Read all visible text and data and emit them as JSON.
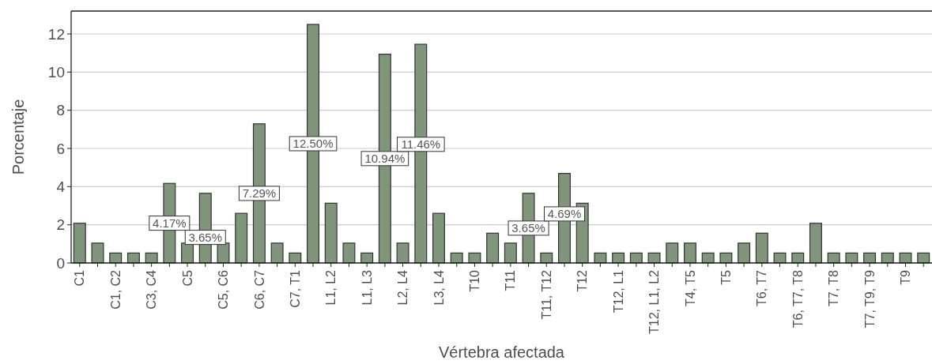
{
  "chart_data": {
    "type": "bar",
    "xlabel": "Vértebra afectada",
    "ylabel": "Porcentaje",
    "categories": [
      "C1",
      null,
      "C1, C2",
      null,
      "C3, C4",
      null,
      "C5",
      null,
      "C5, C6",
      null,
      "C6, C7",
      null,
      "C7, T1",
      null,
      "L1, L2",
      null,
      "L1, L3",
      null,
      "L2, L4",
      null,
      "L3, L4",
      null,
      "T10",
      null,
      "T11",
      null,
      "T11, T12",
      null,
      "T12",
      null,
      "T12, L1",
      null,
      "T12, L1, L2",
      null,
      "T4, T5",
      null,
      "T5",
      null,
      "T6, T7",
      null,
      "T6, T7, T8",
      null,
      "T7, T8",
      null,
      "T7, T9, T9",
      null,
      "T9",
      null
    ],
    "values": [
      2.08,
      1.04,
      0.52,
      0.52,
      0.52,
      4.17,
      1.04,
      3.65,
      1.04,
      2.6,
      7.29,
      1.04,
      0.52,
      12.5,
      3.13,
      1.04,
      0.52,
      10.94,
      1.04,
      11.46,
      2.6,
      0.52,
      0.52,
      1.56,
      1.04,
      3.65,
      0.52,
      4.69,
      3.13,
      0.52,
      0.52,
      0.52,
      0.52,
      1.04,
      1.04,
      0.52,
      0.52,
      1.04,
      1.56,
      0.52,
      0.52,
      2.08,
      0.52,
      0.52,
      0.52,
      0.52,
      0.52,
      0.52
    ],
    "value_labels": [
      null,
      null,
      null,
      null,
      null,
      "4.17%",
      null,
      "3.65%",
      null,
      null,
      "7.29%",
      null,
      null,
      "12.50%",
      null,
      null,
      null,
      "10.94%",
      null,
      "11.46%",
      null,
      null,
      null,
      null,
      null,
      "3.65%",
      null,
      "4.69%",
      null,
      null,
      null,
      null,
      null,
      null,
      null,
      null,
      null,
      null,
      null,
      null,
      null,
      null,
      null,
      null,
      null,
      null,
      null,
      null
    ],
    "color": "#7f967a",
    "ylim": [
      0,
      13.2
    ],
    "yticks": [
      0,
      2,
      4,
      6,
      8,
      10,
      12
    ],
    "grid": "y"
  }
}
